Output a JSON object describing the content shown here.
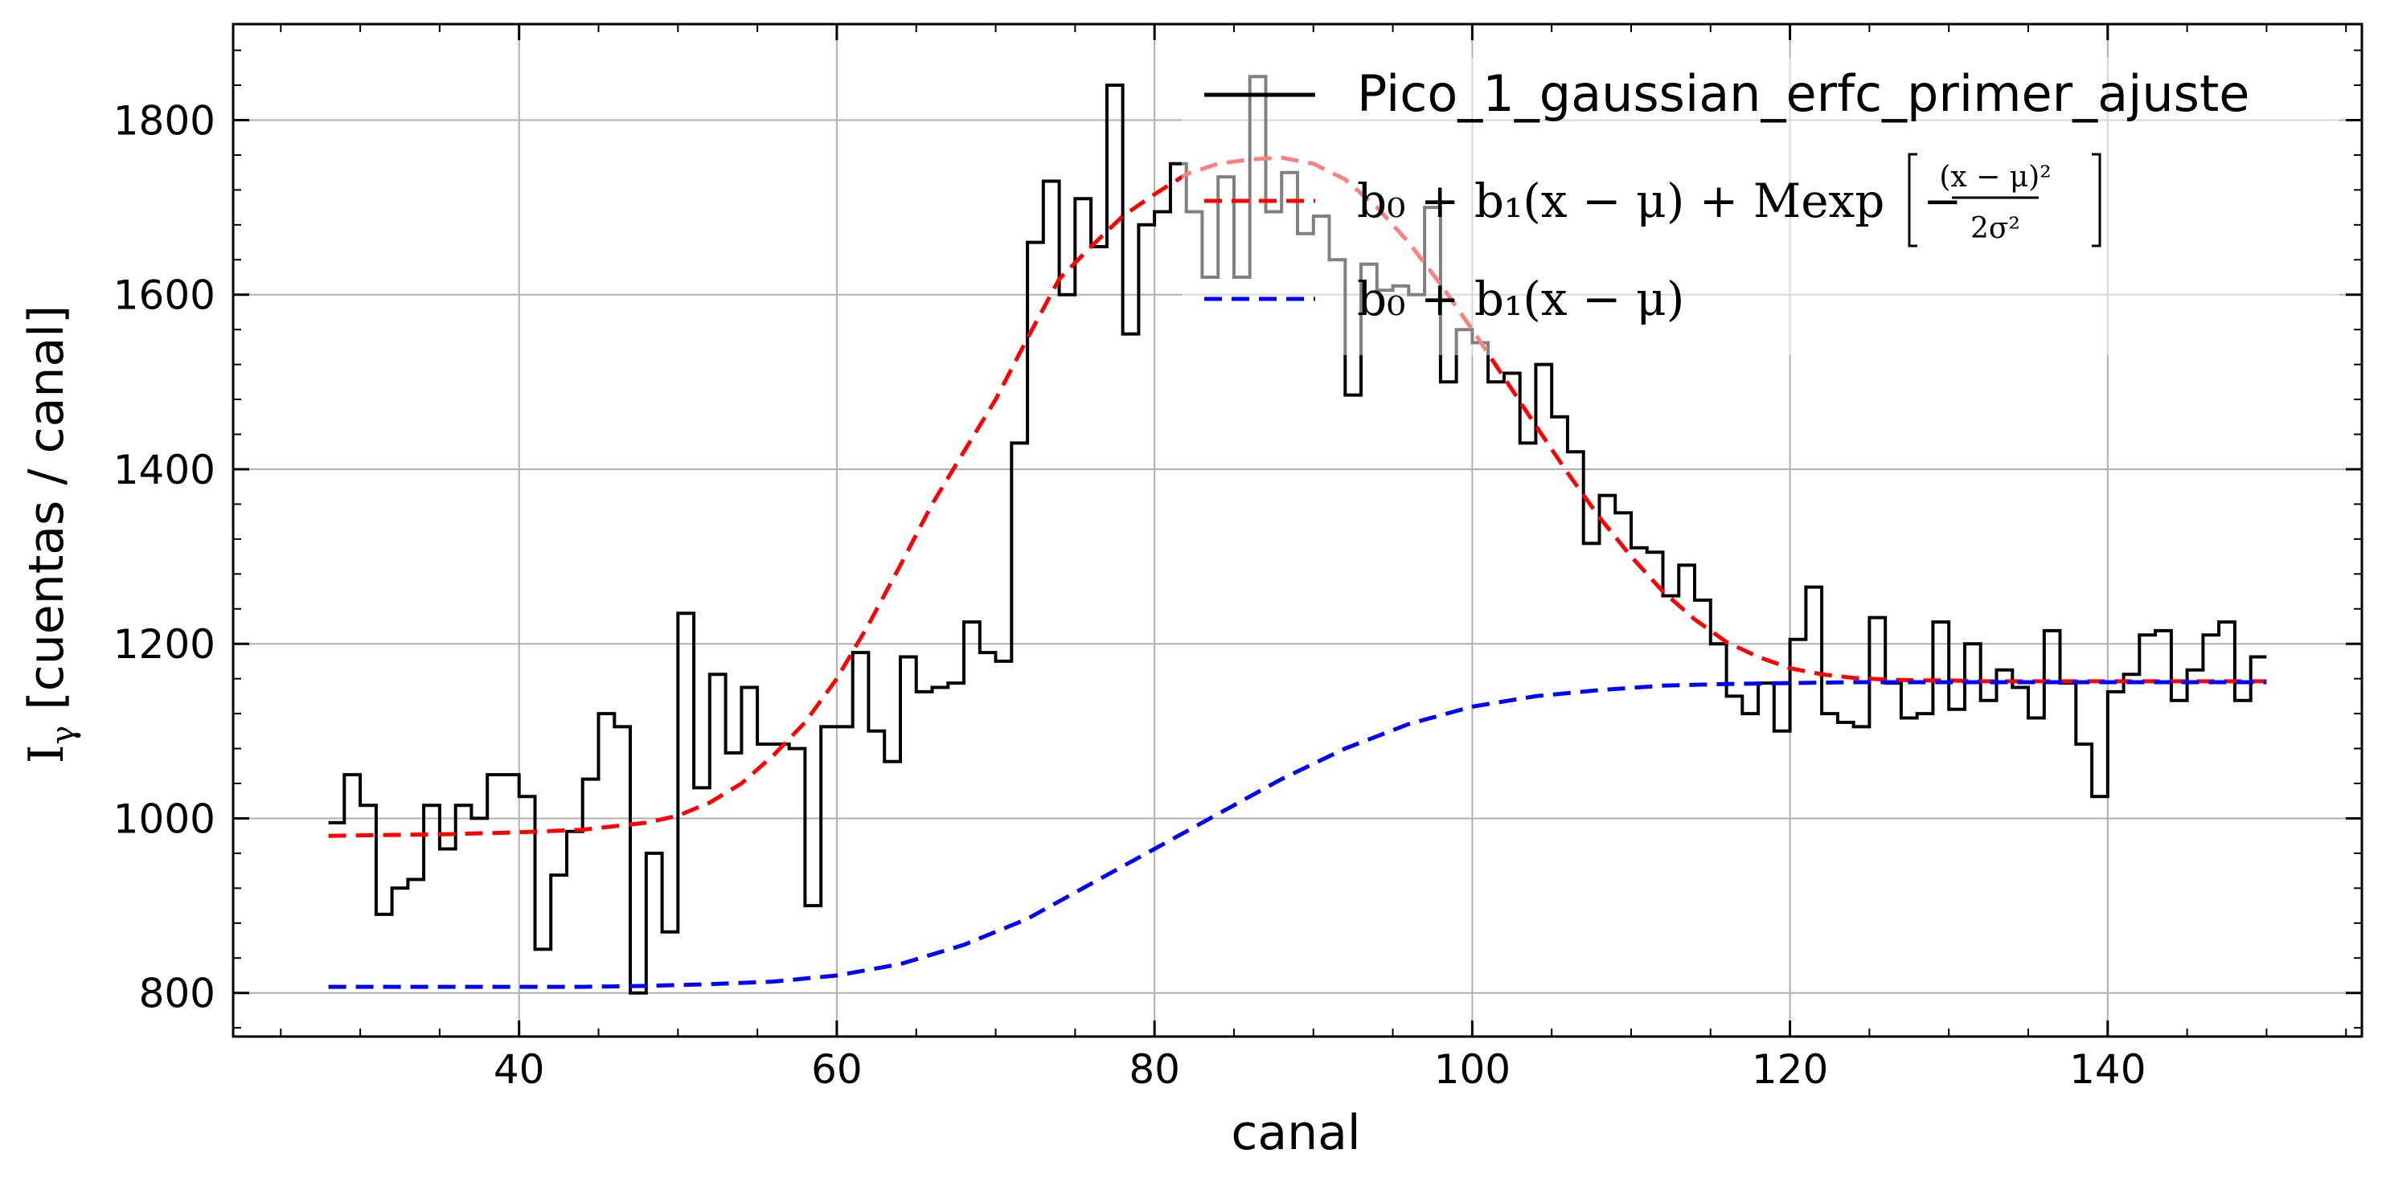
{
  "chart_data": {
    "type": "line",
    "title": "",
    "xlabel": "canal",
    "ylabel": "I",
    "ylabel_sub": "γ",
    "ylabel_rest": " [cuentas / canal]",
    "xlim": [
      22,
      156
    ],
    "ylim": [
      750,
      1910
    ],
    "xticks": [
      40,
      60,
      80,
      100,
      120,
      140
    ],
    "yticks": [
      800,
      1000,
      1200,
      1400,
      1600,
      1800
    ],
    "grid": true,
    "legend_position": "top-right",
    "series": [
      {
        "name": "Pico_1_gaussian_erfc_primer_ajuste",
        "kind": "step",
        "color": "#000000",
        "x": [
          28,
          29,
          30,
          31,
          32,
          33,
          34,
          35,
          36,
          37,
          38,
          39,
          40,
          41,
          42,
          43,
          44,
          45,
          46,
          47,
          48,
          49,
          50,
          51,
          52,
          53,
          54,
          55,
          56,
          57,
          58,
          59,
          60,
          61,
          62,
          63,
          64,
          65,
          66,
          67,
          68,
          69,
          70,
          71,
          72,
          73,
          74,
          75,
          76,
          77,
          78,
          79,
          80,
          81,
          82,
          83,
          84,
          85,
          86,
          87,
          88,
          89,
          90,
          91,
          92,
          93,
          94,
          95,
          96,
          97,
          98,
          99,
          100,
          101,
          102,
          103,
          104,
          105,
          106,
          107,
          108,
          109,
          110,
          111,
          112,
          113,
          114,
          115,
          116,
          117,
          118,
          119,
          120,
          121,
          122,
          123,
          124,
          125,
          126,
          127,
          128,
          129,
          130,
          131,
          132,
          133,
          134,
          135,
          136,
          137,
          138,
          139,
          140,
          141,
          142,
          143,
          144,
          145,
          146,
          147,
          148,
          149
        ],
        "y": [
          995,
          1050,
          1015,
          890,
          920,
          930,
          1015,
          965,
          1015,
          1000,
          1050,
          1050,
          1025,
          850,
          935,
          985,
          1045,
          1120,
          1105,
          800,
          960,
          870,
          1235,
          1035,
          1165,
          1075,
          1150,
          1085,
          1085,
          1080,
          900,
          1105,
          1105,
          1190,
          1100,
          1065,
          1185,
          1145,
          1150,
          1155,
          1225,
          1190,
          1180,
          1430,
          1660,
          1730,
          1600,
          1710,
          1655,
          1840,
          1555,
          1680,
          1695,
          1750,
          1695,
          1620,
          1735,
          1620,
          1850,
          1695,
          1740,
          1670,
          1690,
          1640,
          1485,
          1635,
          1605,
          1610,
          1600,
          1700,
          1500,
          1560,
          1545,
          1500,
          1510,
          1430,
          1520,
          1460,
          1420,
          1315,
          1370,
          1350,
          1310,
          1305,
          1255,
          1290,
          1250,
          1200,
          1140,
          1120,
          1155,
          1100,
          1205,
          1265,
          1120,
          1110,
          1105,
          1230,
          1155,
          1115,
          1120,
          1225,
          1125,
          1200,
          1135,
          1170,
          1150,
          1115,
          1215,
          1155,
          1085,
          1025,
          1145,
          1165,
          1210,
          1215,
          1135,
          1170,
          1210,
          1225,
          1135,
          1185
        ],
        "x_end": 150
      },
      {
        "name": "b₀ + b₁(x − μ) + Mexp",
        "name_exponent": "(x − μ)²",
        "name_denominator": "2σ²",
        "kind": "line",
        "style": "dashed",
        "color": "#ff0000",
        "x": [
          28,
          32,
          36,
          40,
          44,
          48,
          50,
          52,
          54,
          56,
          58,
          60,
          62,
          64,
          66,
          68,
          70,
          72,
          74,
          76,
          78,
          80,
          82,
          84,
          86,
          88,
          90,
          92,
          94,
          96,
          98,
          100,
          102,
          104,
          106,
          108,
          110,
          112,
          114,
          116,
          118,
          120,
          122,
          124,
          126,
          128,
          130,
          132,
          134,
          136,
          138,
          140,
          142,
          144,
          146,
          148,
          150
        ],
        "y": [
          980,
          981,
          982,
          984,
          987,
          995,
          1003,
          1018,
          1040,
          1072,
          1110,
          1160,
          1222,
          1290,
          1360,
          1420,
          1480,
          1550,
          1618,
          1655,
          1690,
          1715,
          1738,
          1750,
          1755,
          1757,
          1750,
          1732,
          1700,
          1660,
          1612,
          1560,
          1505,
          1450,
          1396,
          1345,
          1300,
          1260,
          1228,
          1202,
          1185,
          1172,
          1165,
          1161,
          1159,
          1158,
          1158,
          1157,
          1157,
          1157,
          1157,
          1157,
          1157,
          1157,
          1157,
          1157,
          1157
        ]
      },
      {
        "name": "b₀ + b₁(x − μ)",
        "kind": "line",
        "style": "dashed",
        "color": "#0000ff",
        "x": [
          28,
          32,
          36,
          40,
          44,
          48,
          52,
          56,
          60,
          64,
          68,
          72,
          76,
          80,
          84,
          88,
          92,
          96,
          100,
          104,
          108,
          112,
          116,
          120,
          124,
          128,
          132,
          136,
          140,
          144,
          148,
          150
        ],
        "y": [
          807,
          807,
          807,
          807,
          807,
          808,
          810,
          813,
          820,
          833,
          855,
          885,
          925,
          965,
          1005,
          1045,
          1080,
          1108,
          1128,
          1140,
          1147,
          1152,
          1154,
          1155,
          1156,
          1156,
          1156,
          1156,
          1156,
          1156,
          1156,
          1156
        ]
      }
    ]
  }
}
